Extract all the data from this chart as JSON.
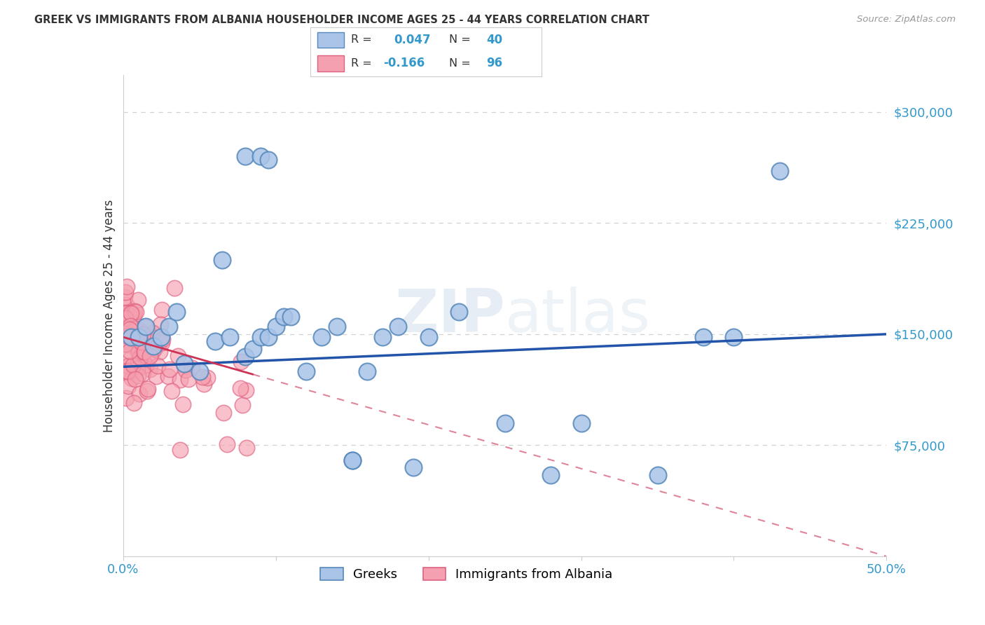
{
  "title": "GREEK VS IMMIGRANTS FROM ALBANIA HOUSEHOLDER INCOME AGES 25 - 44 YEARS CORRELATION CHART",
  "source": "Source: ZipAtlas.com",
  "ylabel": "Householder Income Ages 25 - 44 years",
  "xlim": [
    0.0,
    0.5
  ],
  "ylim": [
    0,
    325000
  ],
  "ytick_labels_right": [
    "$75,000",
    "$150,000",
    "$225,000",
    "$300,000"
  ],
  "ytick_values_right": [
    75000,
    150000,
    225000,
    300000
  ],
  "greek_color": "#aac4e8",
  "greek_edge": "#5588bb",
  "albanian_color": "#f5a0b0",
  "albanian_edge": "#e06080",
  "greek_line_color": "#2255aa",
  "albanian_line_color": "#cc3355",
  "right_label_color": "#3399cc",
  "bottom_label_color": "#3399cc",
  "grid_color": "#cccccc",
  "background_color": "#ffffff",
  "title_color": "#333333",
  "greeks_x": [
    0.005,
    0.01,
    0.015,
    0.02,
    0.025,
    0.03,
    0.035,
    0.04,
    0.05,
    0.06,
    0.065,
    0.07,
    0.08,
    0.085,
    0.09,
    0.095,
    0.1,
    0.105,
    0.11,
    0.12,
    0.13,
    0.14,
    0.15,
    0.16,
    0.17,
    0.18,
    0.19,
    0.2,
    0.22,
    0.25,
    0.28,
    0.3,
    0.35,
    0.38,
    0.4,
    0.43,
    0.08,
    0.09,
    0.095,
    0.15
  ],
  "greeks_y": [
    148000,
    148000,
    155000,
    142000,
    148000,
    155000,
    165000,
    130000,
    125000,
    145000,
    200000,
    148000,
    135000,
    140000,
    148000,
    148000,
    155000,
    162000,
    162000,
    125000,
    148000,
    155000,
    65000,
    125000,
    148000,
    155000,
    60000,
    148000,
    165000,
    90000,
    55000,
    90000,
    55000,
    148000,
    148000,
    260000,
    270000,
    270000,
    268000,
    65000
  ],
  "alb_line_x0": 0.0,
  "alb_line_x1": 0.5,
  "alb_line_y0": 148000,
  "alb_line_y1": 0,
  "greek_line_x0": 0.0,
  "greek_line_x1": 0.5,
  "greek_line_y0": 128000,
  "greek_line_y1": 150000
}
